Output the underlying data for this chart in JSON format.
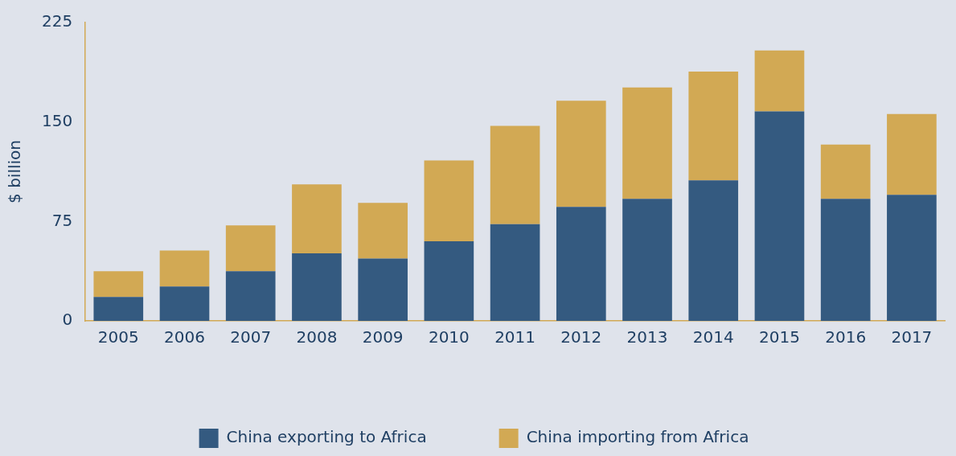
{
  "chart_data": {
    "type": "bar",
    "stacked": true,
    "ylabel": "$ billion",
    "categories": [
      "2005",
      "2006",
      "2007",
      "2008",
      "2009",
      "2010",
      "2011",
      "2012",
      "2013",
      "2014",
      "2015",
      "2016",
      "2017"
    ],
    "series": [
      {
        "name": "China exporting to Africa",
        "color": "#345a80",
        "values": [
          18,
          26,
          37.5,
          51,
          47,
          60,
          73,
          86,
          92,
          106,
          158,
          92,
          95
        ]
      },
      {
        "name": "China importing from Africa",
        "color": "#d2a954",
        "values": [
          19.5,
          27,
          34.5,
          52,
          42,
          61,
          74,
          80,
          84,
          82,
          46,
          41,
          61
        ]
      }
    ],
    "ylim": [
      0,
      225
    ],
    "yticks": [
      0,
      75,
      150,
      225
    ],
    "grid": false,
    "legend": "bottom"
  }
}
